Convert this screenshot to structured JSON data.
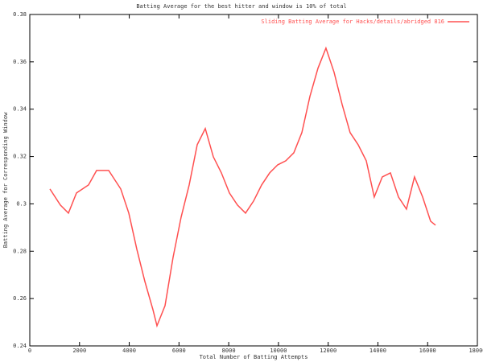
{
  "chart_data": {
    "type": "line",
    "title": "Batting Average for the best hitter and window is 10% of total",
    "x_label": "Total Number of Batting Attempts",
    "y_label": "Batting Average for Corresponding Window",
    "xlim": [
      0,
      18000
    ],
    "xticks": [
      0,
      2000,
      4000,
      6000,
      8000,
      10000,
      12000,
      14000,
      16000,
      18000
    ],
    "ylim": [
      0.24,
      0.38
    ],
    "yticks": [
      0.24,
      0.26,
      0.28,
      0.3,
      0.32,
      0.34,
      0.36,
      0.38
    ],
    "legend": "top-right",
    "x": [
      809,
      1230,
      1554,
      1878,
      2363,
      2687,
      3172,
      3658,
      3982,
      4305,
      4629,
      4953,
      5115,
      5438,
      5762,
      6086,
      6410,
      6733,
      7057,
      7381,
      7705,
      8028,
      8352,
      8676,
      8999,
      9323,
      9647,
      9970,
      10294,
      10618,
      10941,
      11265,
      11589,
      11912,
      12236,
      12560,
      12883,
      13207,
      13531,
      13854,
      14178,
      14502,
      14826,
      15149,
      15473,
      15797,
      16120,
      16315
    ],
    "series": [
      {
        "name": "Sliding Batting Average for Hacks/details/abridged 816",
        "color": "#ff5050",
        "values": [
          0.3063,
          0.2995,
          0.2961,
          0.3046,
          0.308,
          0.3141,
          0.3141,
          0.3063,
          0.2961,
          0.2808,
          0.2672,
          0.2553,
          0.2485,
          0.257,
          0.2774,
          0.2944,
          0.308,
          0.325,
          0.3318,
          0.3199,
          0.3131,
          0.3046,
          0.2995,
          0.2961,
          0.3012,
          0.308,
          0.3131,
          0.3165,
          0.3182,
          0.3216,
          0.3301,
          0.3454,
          0.3573,
          0.3658,
          0.3556,
          0.342,
          0.3301,
          0.325,
          0.3182,
          0.3029,
          0.3114,
          0.3131,
          0.3029,
          0.2978,
          0.3114,
          0.3029,
          0.2927,
          0.291
        ]
      }
    ]
  }
}
